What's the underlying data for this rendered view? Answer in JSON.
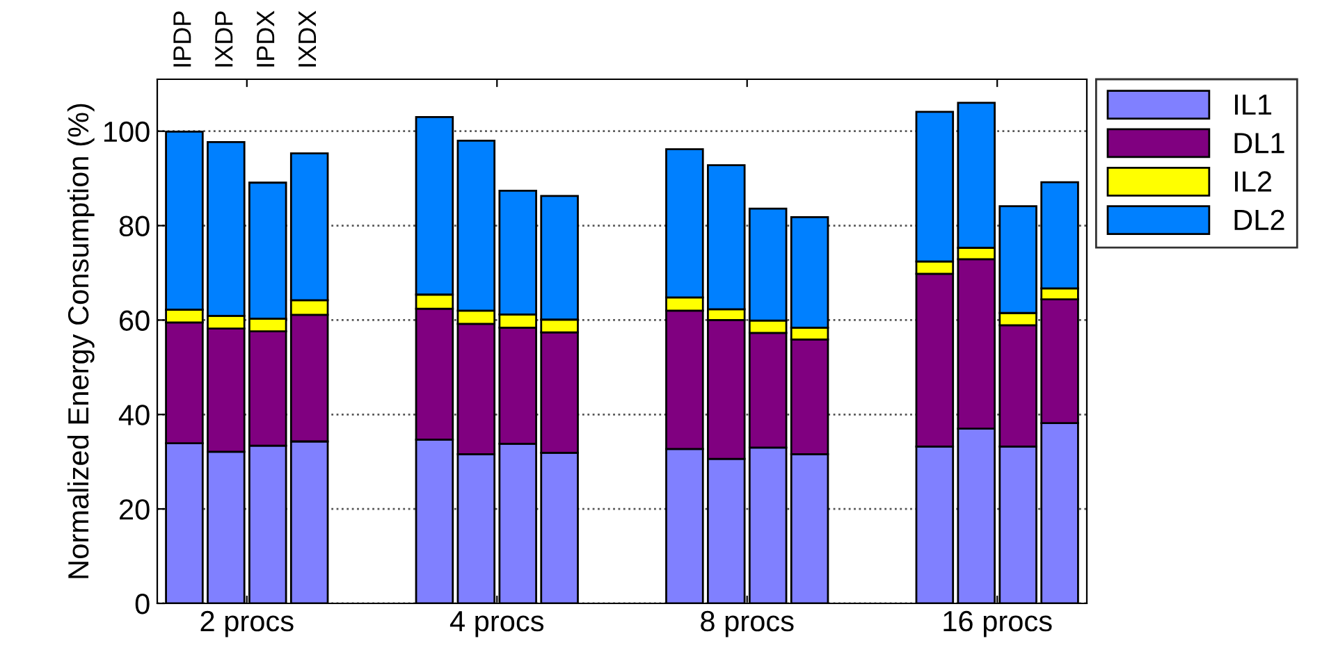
{
  "chart_data": {
    "type": "bar",
    "stacked": true,
    "ylabel": "Normalized Energy Consumption (%)",
    "categories": [
      "IPDP",
      "IXDP",
      "IPDX",
      "IXDX",
      null,
      null,
      null,
      null,
      null,
      null,
      null,
      null,
      null,
      null,
      null,
      null,
      null,
      null,
      null,
      null,
      null,
      null
    ],
    "annotations": [
      "2 procs",
      "4 procs",
      "8 procs",
      "16 procs"
    ],
    "series": [
      {
        "name": "IL1",
        "color": "#8080ff",
        "values": [
          33.9,
          32.1,
          33.4,
          34.3,
          null,
          null,
          34.7,
          31.6,
          33.8,
          31.9,
          null,
          null,
          32.7,
          30.6,
          33.0,
          31.6,
          null,
          null,
          33.2,
          37.0,
          33.2,
          38.2
        ]
      },
      {
        "name": "DL1",
        "color": "#800080",
        "values": [
          25.6,
          26.1,
          24.2,
          26.8,
          null,
          null,
          27.7,
          27.6,
          24.6,
          25.5,
          null,
          null,
          29.3,
          29.4,
          24.3,
          24.3,
          null,
          null,
          36.6,
          35.9,
          25.7,
          26.2
        ]
      },
      {
        "name": "IL2",
        "color": "#ffff00",
        "values": [
          2.7,
          2.7,
          2.7,
          3.1,
          null,
          null,
          3.0,
          2.8,
          2.8,
          2.7,
          null,
          null,
          2.8,
          2.3,
          2.6,
          2.5,
          null,
          null,
          2.6,
          2.4,
          2.6,
          2.3
        ]
      },
      {
        "name": "DL2",
        "color": "#0080ff",
        "values": [
          37.7,
          36.8,
          28.8,
          31.1,
          null,
          null,
          37.6,
          36.0,
          26.2,
          26.2,
          null,
          null,
          31.4,
          30.5,
          23.7,
          23.4,
          null,
          null,
          31.7,
          30.7,
          22.6,
          22.5
        ]
      }
    ],
    "ylim": [
      0,
      111
    ],
    "yticks": [
      0,
      20,
      40,
      60,
      80,
      100
    ],
    "grid": "y",
    "line_style": "dotted",
    "legend": "top right"
  }
}
